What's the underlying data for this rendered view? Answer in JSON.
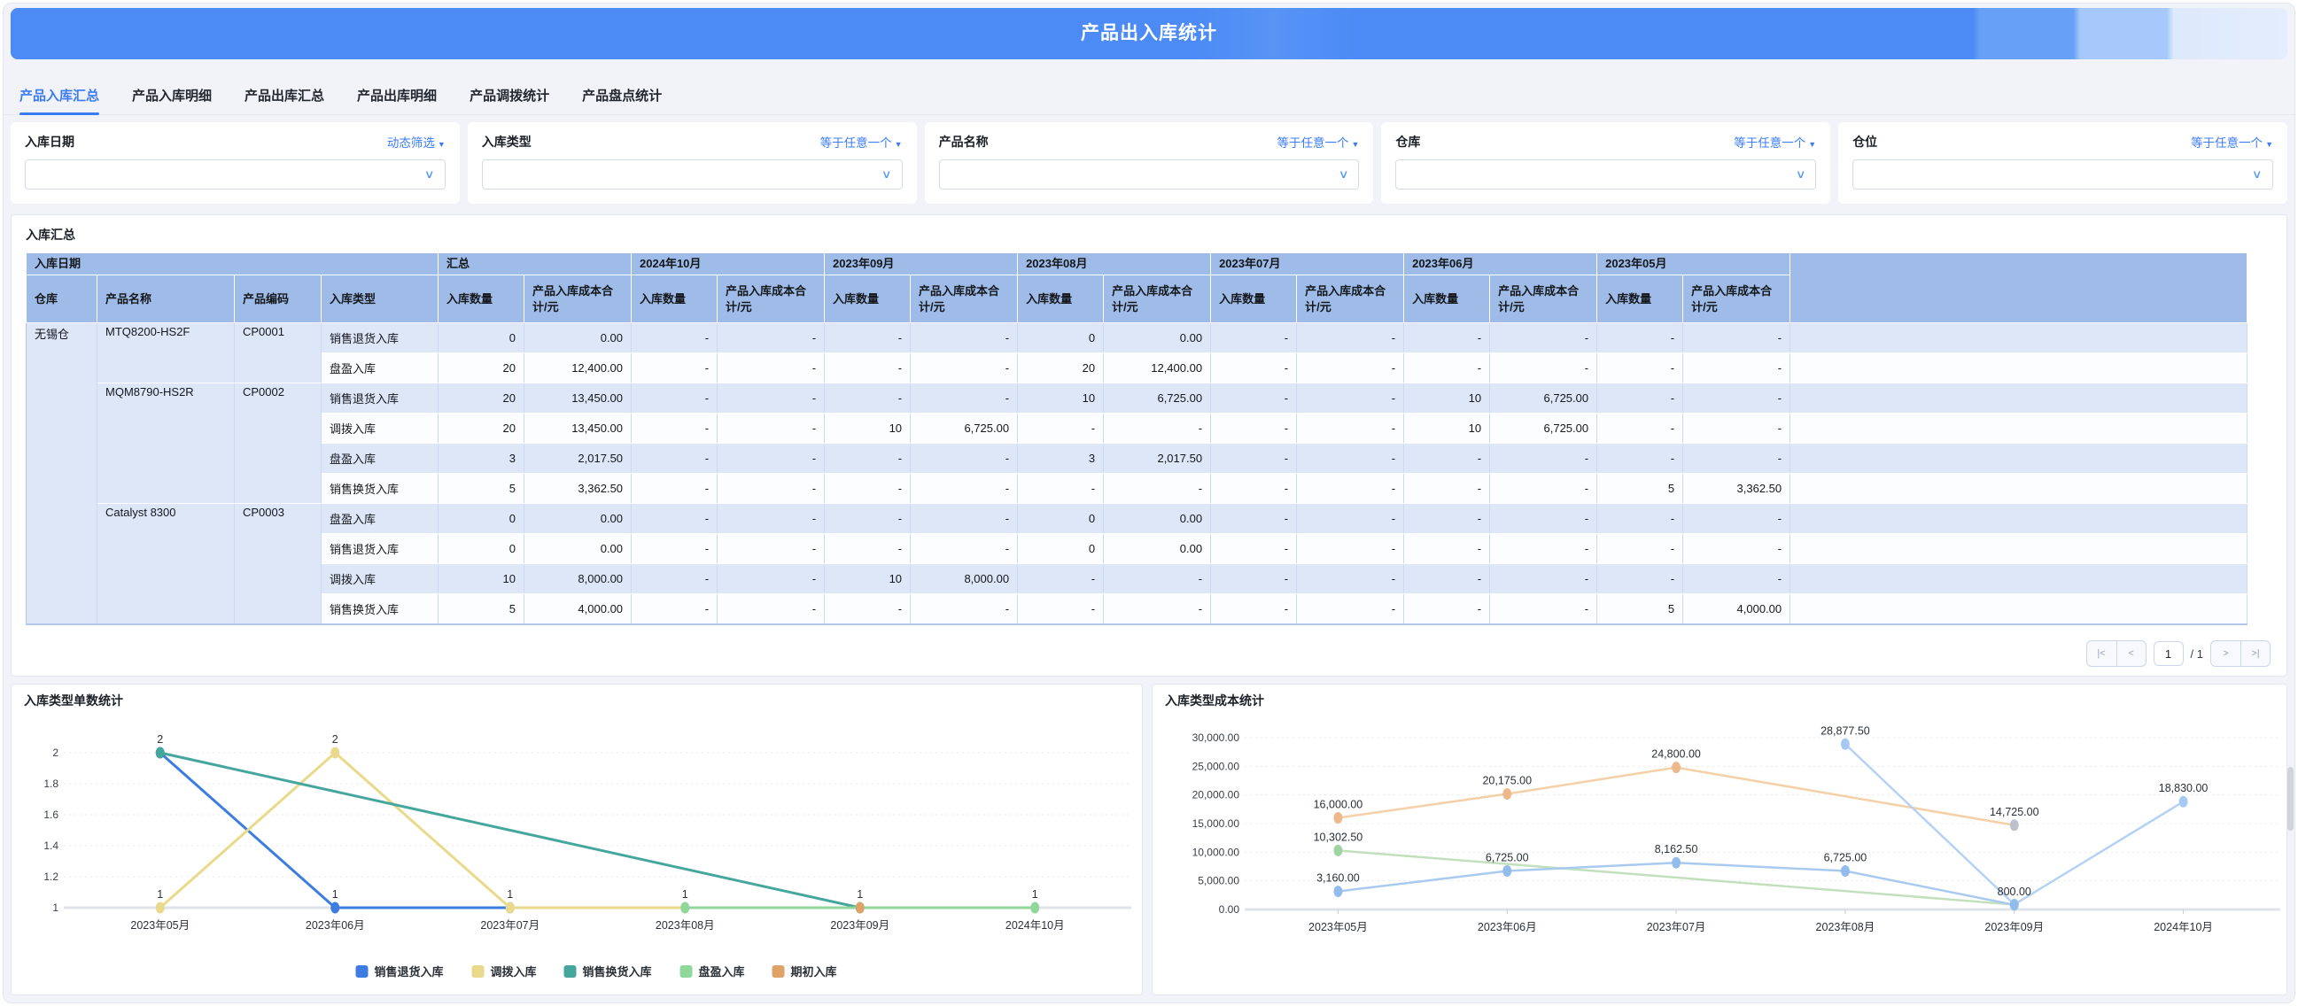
{
  "page": {
    "title": "产品出入库统计"
  },
  "tabs": [
    {
      "label": "产品入库汇总",
      "active": true
    },
    {
      "label": "产品入库明细",
      "active": false
    },
    {
      "label": "产品出库汇总",
      "active": false
    },
    {
      "label": "产品出库明细",
      "active": false
    },
    {
      "label": "产品调拨统计",
      "active": false
    },
    {
      "label": "产品盘点统计",
      "active": false
    }
  ],
  "filters": [
    {
      "label": "入库日期",
      "operator": "动态筛选"
    },
    {
      "label": "入库类型",
      "operator": "等于任意一个"
    },
    {
      "label": "产品名称",
      "operator": "等于任意一个"
    },
    {
      "label": "仓库",
      "operator": "等于任意一个"
    },
    {
      "label": "仓位",
      "operator": "等于任意一个"
    }
  ],
  "table": {
    "section_title": "入库汇总",
    "corner_header": "入库日期",
    "col_groups": [
      "汇总",
      "2024年10月",
      "2023年09月",
      "2023年08月",
      "2023年07月",
      "2023年06月",
      "2023年05月"
    ],
    "fixed_headers": [
      "仓库",
      "产品名称",
      "产品编码",
      "入库类型"
    ],
    "qty_header": "入库数量",
    "cost_header": "产品入库成本合计/元",
    "rows": [
      {
        "warehouse": "无锡仓",
        "warehouse_span": 10,
        "product": "MTQ8200-HS2F",
        "product_span": 2,
        "code": "CP0001",
        "code_span": 2,
        "type": "销售退货入库",
        "cells": [
          "0",
          "0.00",
          "-",
          "-",
          "-",
          "-",
          "0",
          "0.00",
          "-",
          "-",
          "-",
          "-",
          "-",
          "-"
        ]
      },
      {
        "type": "盘盈入库",
        "cells": [
          "20",
          "12,400.00",
          "-",
          "-",
          "-",
          "-",
          "20",
          "12,400.00",
          "-",
          "-",
          "-",
          "-",
          "-",
          "-"
        ]
      },
      {
        "product": "MQM8790-HS2R",
        "product_span": 4,
        "code": "CP0002",
        "code_span": 4,
        "type": "销售退货入库",
        "cells": [
          "20",
          "13,450.00",
          "-",
          "-",
          "-",
          "-",
          "10",
          "6,725.00",
          "-",
          "-",
          "10",
          "6,725.00",
          "-",
          "-"
        ]
      },
      {
        "type": "调拨入库",
        "cells": [
          "20",
          "13,450.00",
          "-",
          "-",
          "10",
          "6,725.00",
          "-",
          "-",
          "-",
          "-",
          "10",
          "6,725.00",
          "-",
          "-"
        ]
      },
      {
        "type": "盘盈入库",
        "cells": [
          "3",
          "2,017.50",
          "-",
          "-",
          "-",
          "-",
          "3",
          "2,017.50",
          "-",
          "-",
          "-",
          "-",
          "-",
          "-"
        ]
      },
      {
        "type": "销售换货入库",
        "cells": [
          "5",
          "3,362.50",
          "-",
          "-",
          "-",
          "-",
          "-",
          "-",
          "-",
          "-",
          "-",
          "-",
          "5",
          "3,362.50"
        ]
      },
      {
        "product": "Catalyst 8300",
        "product_span": 4,
        "code": "CP0003",
        "code_span": 4,
        "type": "盘盈入库",
        "cells": [
          "0",
          "0.00",
          "-",
          "-",
          "-",
          "-",
          "0",
          "0.00",
          "-",
          "-",
          "-",
          "-",
          "-",
          "-"
        ]
      },
      {
        "type": "销售退货入库",
        "cells": [
          "0",
          "0.00",
          "-",
          "-",
          "-",
          "-",
          "0",
          "0.00",
          "-",
          "-",
          "-",
          "-",
          "-",
          "-"
        ]
      },
      {
        "type": "调拨入库",
        "cells": [
          "10",
          "8,000.00",
          "-",
          "-",
          "10",
          "8,000.00",
          "-",
          "-",
          "-",
          "-",
          "-",
          "-",
          "-",
          "-"
        ]
      },
      {
        "type": "销售换货入库",
        "cells": [
          "5",
          "4,000.00",
          "-",
          "-",
          "-",
          "-",
          "-",
          "-",
          "-",
          "-",
          "-",
          "-",
          "5",
          "4,000.00"
        ]
      }
    ]
  },
  "pagination": {
    "first": "|<",
    "prev": "<",
    "page": "1",
    "total": "/ 1",
    "next": ">",
    "last": ">|"
  },
  "chart_data": [
    {
      "type": "line",
      "title": "入库类型单数统计",
      "categories": [
        "2023年05月",
        "2023年06月",
        "2023年07月",
        "2023年08月",
        "2023年09月",
        "2024年10月"
      ],
      "ylim": [
        1,
        2
      ],
      "ytick_labels": [
        "1",
        "1.2",
        "1.4",
        "1.6",
        "1.8",
        "2"
      ],
      "grid": "dotted",
      "legend_position": "bottom",
      "show_point_labels": true,
      "series": [
        {
          "name": "销售退货入库",
          "color": "#3D7DE2",
          "values": [
            2,
            1,
            1,
            null,
            null,
            null
          ]
        },
        {
          "name": "调拨入库",
          "color": "#E9D98B",
          "values": [
            1,
            2,
            1,
            1,
            null,
            null
          ]
        },
        {
          "name": "销售换货入库",
          "color": "#45A69E",
          "values": [
            2,
            null,
            null,
            null,
            1,
            null
          ]
        },
        {
          "name": "盘盈入库",
          "color": "#8FD79A",
          "values": [
            null,
            null,
            null,
            1,
            1,
            1
          ]
        },
        {
          "name": "期初入库",
          "color": "#DFA368",
          "values": [
            null,
            null,
            null,
            null,
            1,
            null
          ]
        }
      ]
    },
    {
      "type": "line",
      "title": "入库类型成本统计",
      "categories": [
        "2023年05月",
        "2023年06月",
        "2023年07月",
        "2023年08月",
        "2023年09月",
        "2024年10月"
      ],
      "ylim": [
        0,
        30000
      ],
      "ytick_labels": [
        "0.00",
        "5,000.00",
        "10,000.00",
        "15,000.00",
        "20,000.00",
        "25,000.00",
        "30,000.00"
      ],
      "grid": "dotted",
      "legend_position": "none",
      "show_point_labels": true,
      "series": [
        {
          "name": "期初入库",
          "color": "#F5CFA5",
          "marker": "#EDB98C",
          "point_colors": {
            "4": "#BCC1CB"
          },
          "values": [
            16000,
            20175,
            24800,
            null,
            14725,
            null
          ],
          "labels": [
            "16,000.00",
            "20,175.00",
            "24,800.00",
            null,
            "14,725.00",
            null
          ]
        },
        {
          "name": "盘盈入库",
          "color": "#C2E0BC",
          "marker": "#9ED4A4",
          "values": [
            10302.5,
            null,
            null,
            null,
            850,
            null
          ],
          "labels": [
            "10,302.50",
            null,
            null,
            null,
            null,
            null
          ]
        },
        {
          "name": "调拨入库",
          "color": "#B5D2F4",
          "marker": "#A6C9F1",
          "values": [
            null,
            null,
            null,
            28877.5,
            870,
            18830
          ],
          "labels": [
            null,
            null,
            null,
            "28,877.50",
            null,
            "18,830.00"
          ]
        },
        {
          "name": "销售退货入库",
          "color": "#A9CAEF",
          "marker": "#92BCEC",
          "values": [
            3160,
            6725,
            8162.5,
            6725,
            800,
            null
          ],
          "labels": [
            "3,160.00",
            "6,725.00",
            "8,162.50",
            "6,725.00",
            "800.00",
            null
          ]
        }
      ]
    }
  ]
}
